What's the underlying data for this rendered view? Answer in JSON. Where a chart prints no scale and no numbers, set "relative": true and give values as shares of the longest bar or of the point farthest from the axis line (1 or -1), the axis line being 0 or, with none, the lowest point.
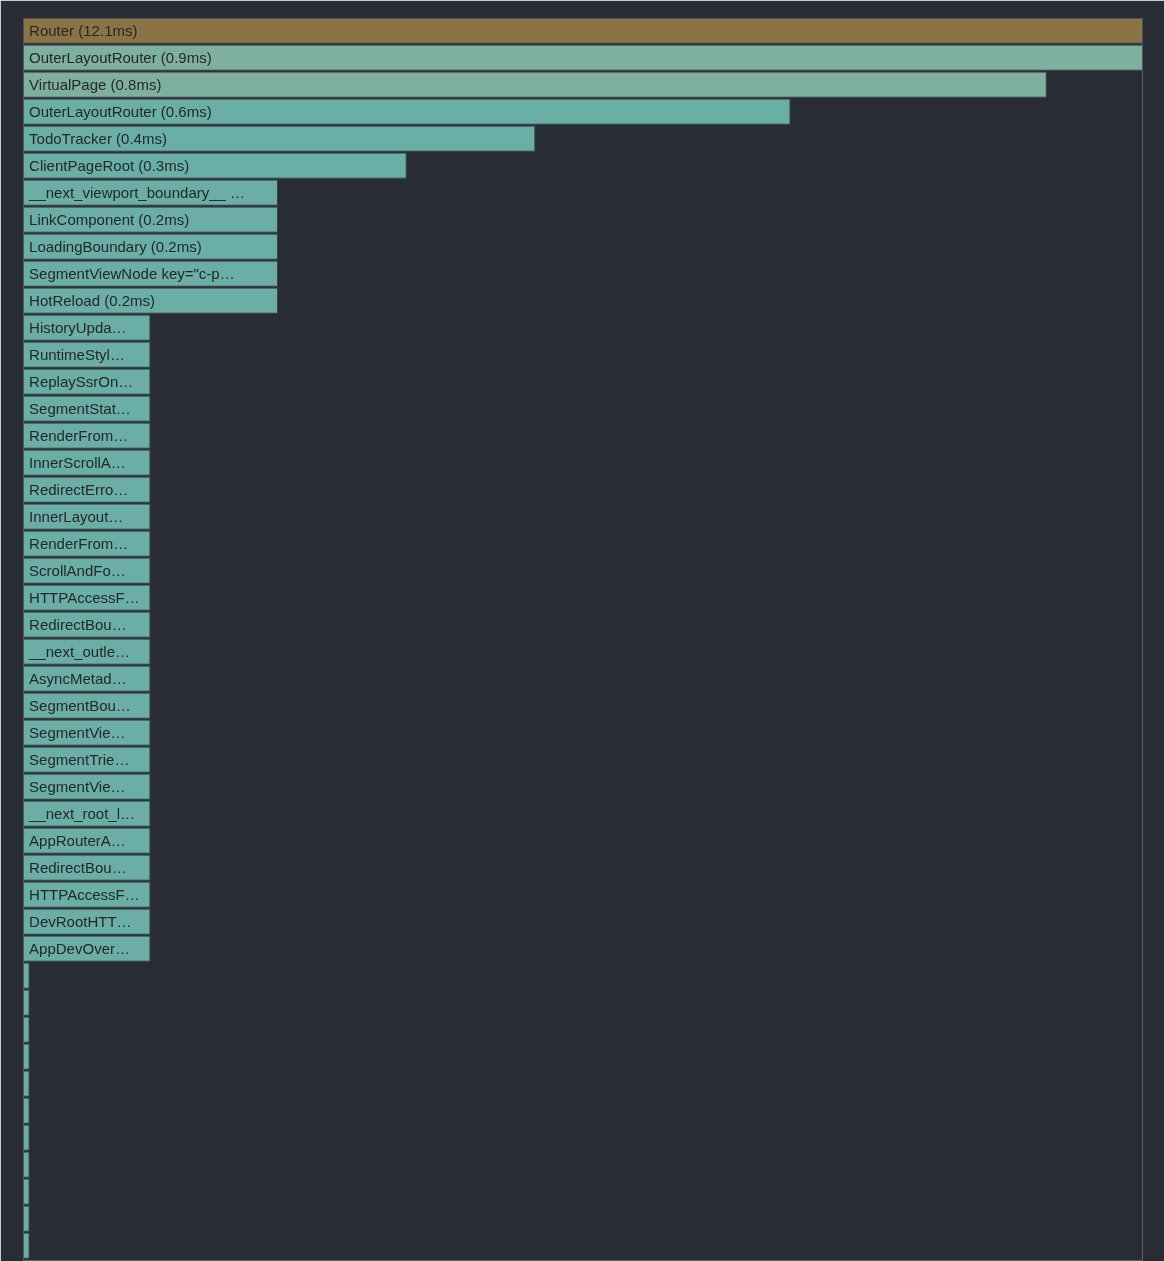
{
  "chart_data": {
    "type": "bar",
    "orientation": "horizontal",
    "relative": true,
    "categories": [
      "Router (12.1ms)",
      "OuterLayoutRouter (0.9ms)",
      "VirtualPage (0.8ms)",
      "OuterLayoutRouter (0.6ms)",
      "TodoTracker (0.4ms)",
      "ClientPageRoot (0.3ms)",
      "__next_viewport_boundary__ …",
      "LinkComponent (0.2ms)",
      "LoadingBoundary (0.2ms)",
      "SegmentViewNode key=\"c-p…",
      "HotReload (0.2ms)",
      "HistoryUpda…",
      "RuntimeStyl…",
      "ReplaySsrOn…",
      "SegmentStat…",
      "RenderFrom…",
      "InnerScrollA…",
      "RedirectErro…",
      "InnerLayout…",
      "RenderFrom…",
      "ScrollAndFo…",
      "HTTPAccessF…",
      "RedirectBou…",
      "__next_outle…",
      "AsyncMetad…",
      "SegmentBou…",
      "SegmentVie…",
      "SegmentTrie…",
      "SegmentVie…",
      "__next_root_l…",
      "AppRouterA…",
      "RedirectBou…",
      "HTTPAccessF…",
      "DevRootHTT…",
      "AppDevOver…",
      null,
      null,
      null,
      null,
      null,
      null,
      null,
      null,
      null,
      null,
      null
    ],
    "values": [
      1,
      1,
      0.914,
      0.685,
      0.457,
      0.342,
      0.227,
      0.227,
      0.227,
      0.227,
      0.227,
      0.113,
      0.113,
      0.113,
      0.113,
      0.113,
      0.113,
      0.113,
      0.113,
      0.113,
      0.113,
      0.113,
      0.113,
      0.113,
      0.113,
      0.113,
      0.113,
      0.113,
      0.113,
      0.113,
      0.113,
      0.113,
      0.113,
      0.113,
      0.113,
      0.005,
      0.005,
      0.005,
      0.005,
      0.005,
      0.005,
      0.005,
      0.005,
      0.005,
      0.005,
      0.005
    ],
    "colors": [
      "#8a7445",
      "#7fb09e",
      "#7fb09e",
      "#6aaea6",
      "#6aaea6",
      "#6aaea6",
      "#6aaea6",
      "#6aaea6",
      "#6aaea6",
      "#6aaea6",
      "#6aaea6",
      "#6aaea6",
      "#6aaea6",
      "#6aaea6",
      "#6aaea6",
      "#6aaea6",
      "#6aaea6",
      "#6aaea6",
      "#6aaea6",
      "#6aaea6",
      "#6aaea6",
      "#6aaea6",
      "#6aaea6",
      "#6aaea6",
      "#6aaea6",
      "#6aaea6",
      "#6aaea6",
      "#6aaea6",
      "#6aaea6",
      "#6aaea6",
      "#6aaea6",
      "#6aaea6",
      "#6aaea6",
      "#6aaea6",
      "#6aaea6",
      "#6aaea6",
      "#6aaea6",
      "#6aaea6",
      "#6aaea6",
      "#6aaea6",
      "#6aaea6",
      "#6aaea6",
      "#6aaea6",
      "#6aaea6",
      "#6aaea6",
      "#6aaea6"
    ]
  }
}
